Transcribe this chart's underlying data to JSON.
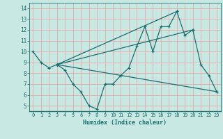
{
  "xlabel": "Humidex (Indice chaleur)",
  "ylabel": "",
  "xlim": [
    -0.5,
    23.5
  ],
  "ylim": [
    4.5,
    14.5
  ],
  "xticks": [
    0,
    1,
    2,
    3,
    4,
    5,
    6,
    7,
    8,
    9,
    10,
    11,
    12,
    13,
    14,
    15,
    16,
    17,
    18,
    19,
    20,
    21,
    22,
    23
  ],
  "yticks": [
    5,
    6,
    7,
    8,
    9,
    10,
    11,
    12,
    13,
    14
  ],
  "bg_color": "#c8e8e4",
  "grid_color": "#e8a8a8",
  "line_color": "#1a6e6e",
  "series": [
    {
      "x": [
        0,
        1,
        2,
        3,
        4,
        5,
        6,
        7,
        8,
        9,
        10,
        11,
        12,
        13,
        14,
        15,
        16,
        17,
        18,
        19,
        20,
        21,
        22,
        23
      ],
      "y": [
        10,
        9,
        8.5,
        8.8,
        8.3,
        7.0,
        6.3,
        5.0,
        4.7,
        7.0,
        7.0,
        7.8,
        8.5,
        10.5,
        12.3,
        10.0,
        12.3,
        12.3,
        13.7,
        11.5,
        12.0,
        8.8,
        7.8,
        6.3
      ]
    },
    {
      "x": [
        3,
        23
      ],
      "y": [
        8.8,
        6.3
      ]
    },
    {
      "x": [
        3,
        18
      ],
      "y": [
        8.8,
        13.7
      ]
    },
    {
      "x": [
        3,
        20
      ],
      "y": [
        8.8,
        12.0
      ]
    }
  ]
}
